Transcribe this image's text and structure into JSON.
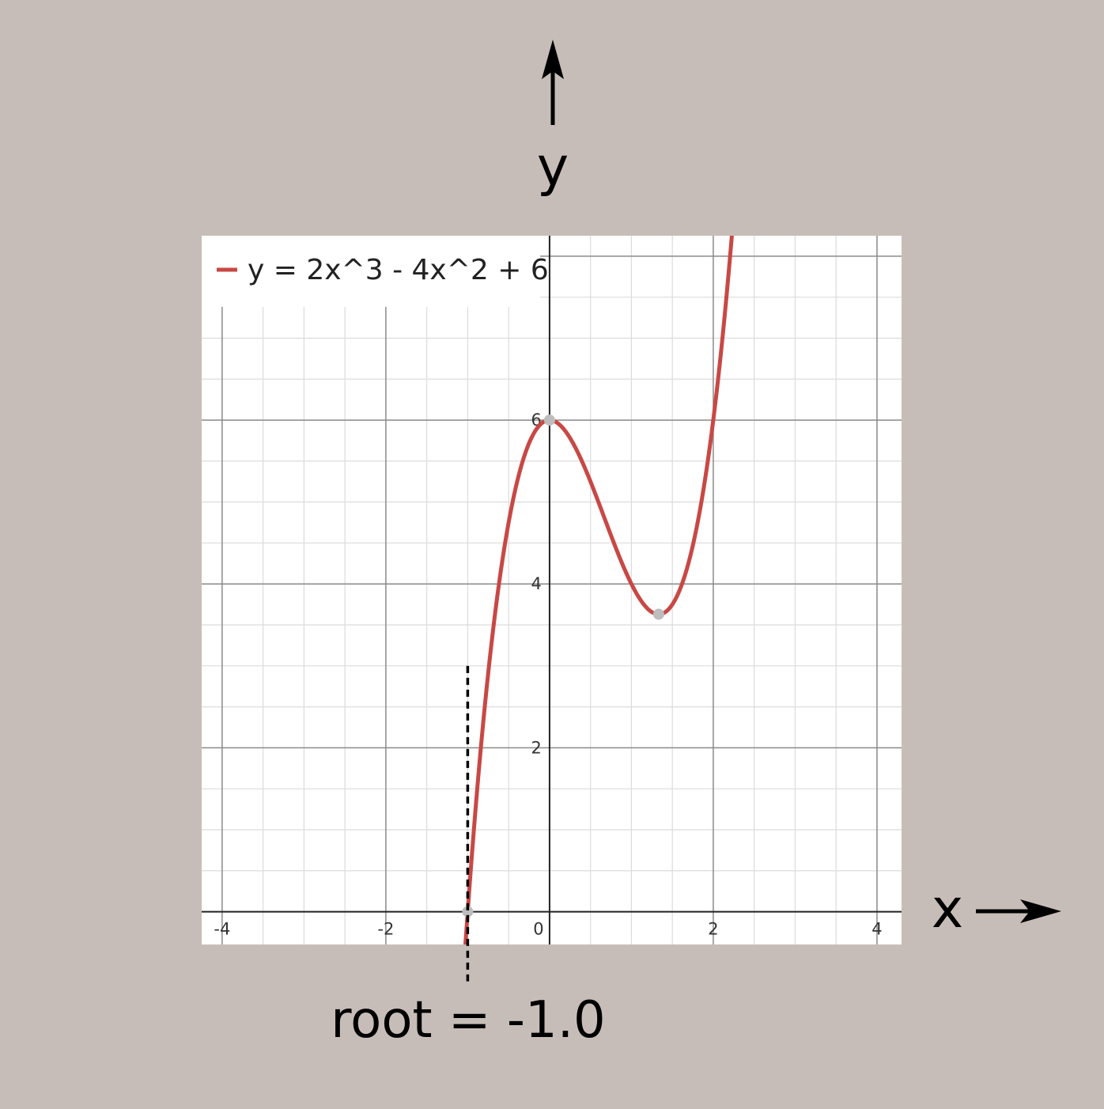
{
  "chart_data": {
    "type": "line",
    "x_axis_label": "x",
    "y_axis_label": "y",
    "xlim": [
      -4.25,
      4.3
    ],
    "ylim": [
      -0.4,
      8.25
    ],
    "x_ticks": [
      "-4",
      "-2",
      "0",
      "2",
      "4"
    ],
    "x_tick_values": [
      -4,
      -2,
      0,
      2,
      4
    ],
    "y_ticks": [
      "2",
      "4",
      "6"
    ],
    "y_tick_values": [
      2,
      4,
      6
    ],
    "grid": true,
    "minor_grid_step": 0.5,
    "major_grid_step": 2,
    "legend_position": "top-left",
    "series": [
      {
        "name": "y = 2x^3 - 4x^2 + 6",
        "color": "#c84845",
        "coefficients": [
          2,
          -4,
          0,
          6
        ],
        "x_range": [
          -1.05,
          2.24
        ]
      }
    ],
    "special_points": [
      {
        "x": 0,
        "y": 6
      },
      {
        "x": 1.333,
        "y": 3.63
      },
      {
        "x": -1.0,
        "y": 0
      }
    ],
    "annotation": {
      "text": "root = -1.0",
      "x": -1.0,
      "dashed_line_y_range": [
        -0.85,
        3.0
      ]
    }
  },
  "colors": {
    "background": "#c7bdb8",
    "plot_area": "#ffffff",
    "curve": "#c84845",
    "point": "#bdbdbd",
    "axis": "#000000"
  }
}
